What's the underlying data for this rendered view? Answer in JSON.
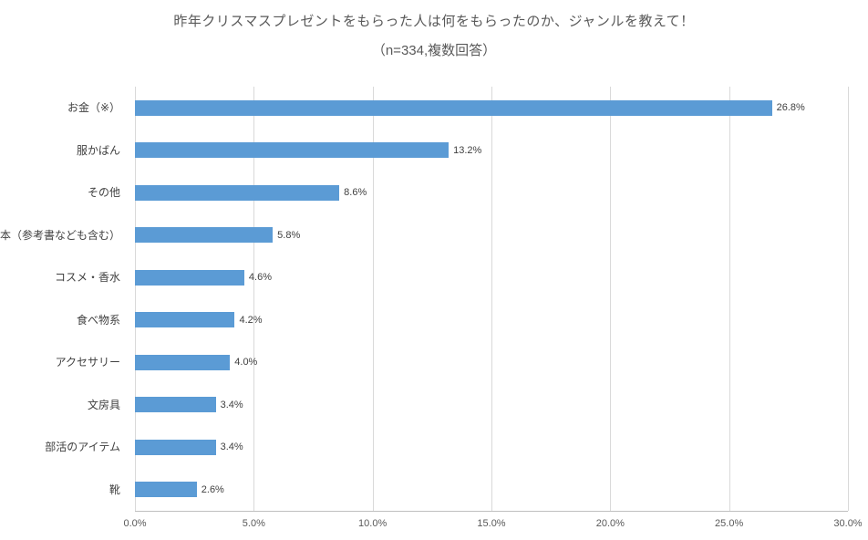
{
  "title": "昨年クリスマスプレゼントをもらった人は何をもらったのか、ジャンルを教えて！",
  "subtitle": "（n=334,複数回答）",
  "colors": {
    "bar": "#5b9bd5",
    "gridline": "#d9d9d9",
    "axis_line": "#bfbfbf",
    "title_text": "#595959",
    "label_text": "#404040"
  },
  "chart_data": {
    "type": "bar",
    "orientation": "horizontal",
    "title": "昨年クリスマスプレゼントをもらった人は何をもらったのか、ジャンルを教えて！",
    "subtitle": "（n=334,複数回答）",
    "xlabel": "",
    "ylabel": "",
    "categories": [
      "お金（※）",
      "服かばん",
      "その他",
      "本（参考書なども含む）",
      "コスメ・香水",
      "食べ物系",
      "アクセサリー",
      "文房具",
      "部活のアイテム",
      "靴"
    ],
    "values": [
      26.8,
      13.2,
      8.6,
      5.8,
      4.6,
      4.2,
      4.0,
      3.4,
      3.4,
      2.6
    ],
    "value_labels": [
      "26.8%",
      "13.2%",
      "8.6%",
      "5.8%",
      "4.6%",
      "4.2%",
      "4.0%",
      "3.4%",
      "3.4%",
      "2.6%"
    ],
    "xlim": [
      0,
      30
    ],
    "x_tick_values": [
      0,
      5,
      10,
      15,
      20,
      25,
      30
    ],
    "x_ticks": [
      "0.0%",
      "5.0%",
      "10.0%",
      "15.0%",
      "20.0%",
      "25.0%",
      "30.0%"
    ],
    "grid": true,
    "legend": false
  }
}
